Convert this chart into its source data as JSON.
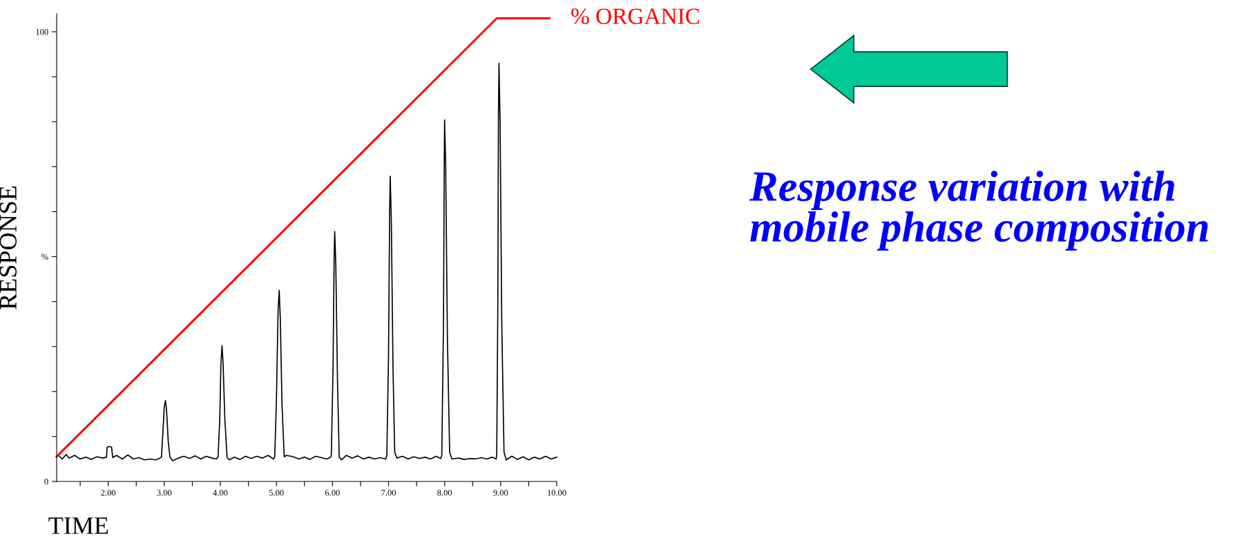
{
  "chart_data": {
    "type": "line",
    "xlabel": "TIME",
    "ylabel": "RESPONSE",
    "xlim": [
      1.08,
      10.0
    ],
    "xticks": [
      {
        "value": 1.5,
        "label": null
      },
      {
        "value": 2,
        "label": "2.00"
      },
      {
        "value": 2.5,
        "label": null
      },
      {
        "value": 3,
        "label": "3.00"
      },
      {
        "value": 3.5,
        "label": null
      },
      {
        "value": 4,
        "label": "4.00"
      },
      {
        "value": 4.5,
        "label": null
      },
      {
        "value": 5,
        "label": "5.00"
      },
      {
        "value": 5.5,
        "label": null
      },
      {
        "value": 6,
        "label": "6.00"
      },
      {
        "value": 6.5,
        "label": null
      },
      {
        "value": 7,
        "label": "7.00"
      },
      {
        "value": 7.5,
        "label": null
      },
      {
        "value": 8,
        "label": "8.00"
      },
      {
        "value": 8.5,
        "label": null
      },
      {
        "value": 9,
        "label": "9.00"
      },
      {
        "value": 9.5,
        "label": null
      },
      {
        "value": 10,
        "label": "10.00"
      }
    ],
    "ylim": [
      0,
      104
    ],
    "yticks": [
      0,
      {
        "value": 10,
        "label": null
      },
      {
        "value": 20,
        "label": null
      },
      {
        "value": 30,
        "label": null
      },
      {
        "value": 40,
        "label": null
      },
      {
        "value": 50,
        "label": "%"
      },
      {
        "value": 60,
        "label": null
      },
      {
        "value": 70,
        "label": null
      },
      {
        "value": 80,
        "label": null
      },
      {
        "value": 90,
        "label": null
      },
      100
    ],
    "grid": false,
    "legend": false,
    "marker": "none",
    "line_style": "solid",
    "series": [
      {
        "color": "#000000",
        "x": [
          1.13,
          1.18,
          1.25,
          1.3,
          1.4,
          1.5,
          1.6,
          1.7,
          1.8,
          1.9,
          1.97,
          1.98,
          2.02,
          2.06,
          2.08,
          2.15,
          2.25,
          2.35,
          2.45,
          2.55,
          2.65,
          2.75,
          2.85,
          2.92,
          2.95,
          2.98,
          3.0,
          3.02,
          3.04,
          3.07,
          3.1,
          3.15,
          3.25,
          3.35,
          3.45,
          3.55,
          3.65,
          3.75,
          3.85,
          3.93,
          3.96,
          3.99,
          4.01,
          4.03,
          4.05,
          4.08,
          4.12,
          4.16,
          4.25,
          4.35,
          4.45,
          4.55,
          4.65,
          4.75,
          4.85,
          4.95,
          4.97,
          5.0,
          5.03,
          5.05,
          5.07,
          5.1,
          5.14,
          5.18,
          5.3,
          5.4,
          5.5,
          5.6,
          5.7,
          5.8,
          5.9,
          5.97,
          5.98,
          6.01,
          6.03,
          6.04,
          6.06,
          6.09,
          6.12,
          6.16,
          6.25,
          6.35,
          6.45,
          6.55,
          6.65,
          6.75,
          6.85,
          6.95,
          6.97,
          7.0,
          7.02,
          7.03,
          7.05,
          7.08,
          7.11,
          7.15,
          7.25,
          7.35,
          7.45,
          7.55,
          7.65,
          7.75,
          7.85,
          7.93,
          7.95,
          7.98,
          7.995,
          8.0,
          8.02,
          8.05,
          8.09,
          8.13,
          8.25,
          8.35,
          8.45,
          8.55,
          8.65,
          8.75,
          8.85,
          8.92,
          8.93,
          8.95,
          8.96,
          8.97,
          8.99,
          9.02,
          9.06,
          9.1,
          9.2,
          9.3,
          9.4,
          9.5,
          9.6,
          9.7,
          9.8,
          9.9,
          10.0
        ],
        "values": [
          5.6,
          5.0,
          6.0,
          5.2,
          5.8,
          5.0,
          5.4,
          4.9,
          5.5,
          5.2,
          5.4,
          7.6,
          7.8,
          7.6,
          5.3,
          5.8,
          5.0,
          5.9,
          5.0,
          5.3,
          4.8,
          5.0,
          4.8,
          5.2,
          5.4,
          12.0,
          16.5,
          18.0,
          16.0,
          9.0,
          5.5,
          4.6,
          5.2,
          5.6,
          5.1,
          5.7,
          5.0,
          5.6,
          5.2,
          5.0,
          5.5,
          14,
          26,
          30.2,
          26,
          14,
          5.3,
          4.8,
          5.4,
          4.9,
          5.6,
          5.1,
          5.6,
          5.2,
          5.8,
          5.0,
          5.5,
          18,
          38,
          42.5,
          36,
          17,
          5.5,
          5.8,
          5.5,
          5.0,
          5.4,
          4.9,
          5.6,
          5.3,
          5.0,
          5.4,
          6,
          25,
          50,
          55.6,
          48,
          22,
          5.5,
          4.8,
          5.8,
          5.2,
          5.7,
          5.0,
          5.4,
          5.0,
          5.3,
          5.0,
          5.8,
          28,
          60,
          67.9,
          58,
          25,
          6.5,
          5.2,
          5.6,
          5.0,
          5.5,
          5.1,
          5.4,
          5.0,
          5.6,
          5.1,
          5.8,
          35,
          72,
          80.4,
          70,
          32,
          6.5,
          5.0,
          5.2,
          4.9,
          5.1,
          5.0,
          5.3,
          5.0,
          5.4,
          5.0,
          6.0,
          40,
          80,
          93.0,
          80,
          35,
          6.5,
          4.8,
          5.6,
          4.9,
          5.5,
          4.8,
          5.4,
          5.0,
          5.6,
          5.0,
          5.4
        ]
      },
      {
        "name": "% ORGANIC",
        "color": "#ff0000",
        "x": [
          1.08,
          8.93,
          9.87
        ],
        "values": [
          5.5,
          103,
          103
        ]
      }
    ],
    "annotations": [
      "Response variation with\nmobile phase composition"
    ]
  }
}
